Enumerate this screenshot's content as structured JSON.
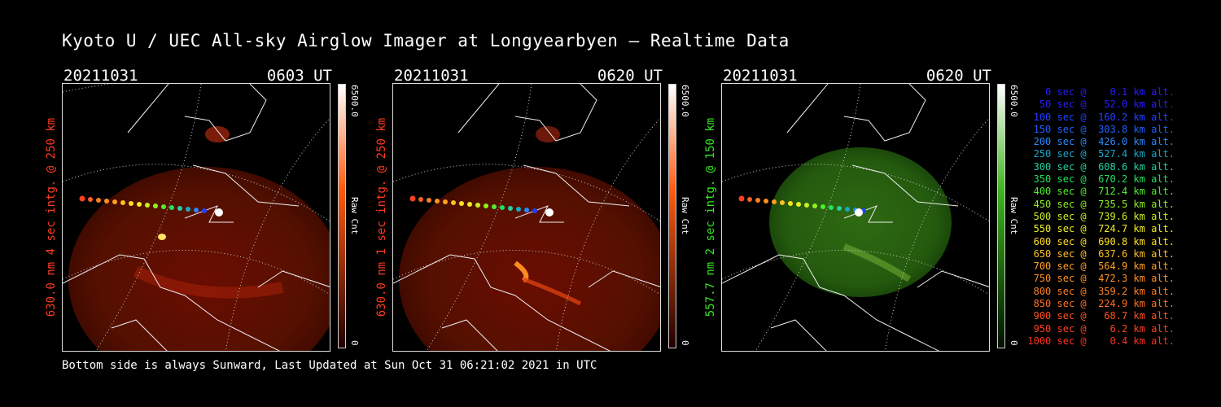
{
  "title": "Kyoto U / UEC All-sky Airglow Imager at Longyearbyen — Realtime Data",
  "panels": [
    {
      "date": "20211031",
      "time": "0603 UT",
      "ylabel": "630.0 nm 4 sec intg. @ 250 km",
      "label_color": "#ff3b1f",
      "colorbar": {
        "max": "6500.0",
        "min": "0",
        "unit": "Raw Cnt",
        "top_color": "#ffffff",
        "mid_color": "#ff5a10",
        "low_color": "#200000"
      }
    },
    {
      "date": "20211031",
      "time": "0620 UT",
      "ylabel": "630.0 nm 1 sec intg. @ 250 km",
      "label_color": "#ff3b1f",
      "colorbar": {
        "max": "6500.0",
        "min": "0",
        "unit": "Raw Cnt",
        "top_color": "#ffffff",
        "mid_color": "#ff5a10",
        "low_color": "#200000"
      }
    },
    {
      "date": "20211031",
      "time": "0620 UT",
      "ylabel": "557.7 nm 2 sec intg. @ 150 km",
      "label_color": "#33e81f",
      "colorbar": {
        "max": "6500.0",
        "min": "0",
        "unit": "Raw Cnt",
        "top_color": "#ffffff",
        "mid_color": "#3fb51f",
        "low_color": "#001200"
      }
    }
  ],
  "legend": [
    {
      "text": "   0 sec @    0.1 km alt.",
      "color": "#2a1cff"
    },
    {
      "text": "  50 sec @   52.0 km alt.",
      "color": "#2a1cff"
    },
    {
      "text": " 100 sec @  160.2 km alt.",
      "color": "#2040ff"
    },
    {
      "text": " 150 sec @  303.8 km alt.",
      "color": "#2060ff"
    },
    {
      "text": " 200 sec @  426.0 km alt.",
      "color": "#2a88ff"
    },
    {
      "text": " 250 sec @  527.4 km alt.",
      "color": "#1aa8c8"
    },
    {
      "text": " 300 sec @  608.6 km alt.",
      "color": "#22d0a0"
    },
    {
      "text": " 350 sec @  670.2 km alt.",
      "color": "#22e060"
    },
    {
      "text": " 400 sec @  712.4 km alt.",
      "color": "#50ee30"
    },
    {
      "text": " 450 sec @  735.5 km alt.",
      "color": "#90f020"
    },
    {
      "text": " 500 sec @  739.6 km alt.",
      "color": "#c8f020"
    },
    {
      "text": " 550 sec @  724.7 km alt.",
      "color": "#f0f020"
    },
    {
      "text": " 600 sec @  690.8 km alt.",
      "color": "#ffe020"
    },
    {
      "text": " 650 sec @  637.6 km alt.",
      "color": "#ffc020"
    },
    {
      "text": " 700 sec @  564.9 km alt.",
      "color": "#ffa020"
    },
    {
      "text": " 750 sec @  472.3 km alt.",
      "color": "#ff9020"
    },
    {
      "text": " 800 sec @  359.2 km alt.",
      "color": "#ff8020"
    },
    {
      "text": " 850 sec @  224.9 km alt.",
      "color": "#ff7020"
    },
    {
      "text": " 900 sec @   68.7 km alt.",
      "color": "#ff5020"
    },
    {
      "text": " 950 sec @    6.2 km alt.",
      "color": "#ff4020"
    },
    {
      "text": "1000 sec @    0.4 km alt.",
      "color": "#ff3020"
    }
  ],
  "footer": "Bottom side is always Sunward, Last Updated at Sun Oct 31 06:21:02 2021 in UTC"
}
